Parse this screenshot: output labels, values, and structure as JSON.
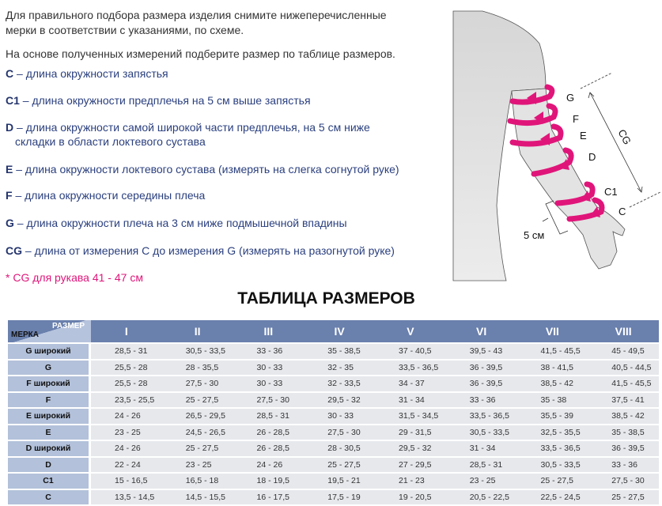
{
  "intro": [
    "Для правильного подбора размера изделия снимите нижеперечисленные",
    "мерки в соответствии с указаниями, по схеме.",
    "На основе полученных измерений подберите размер по таблице размеров."
  ],
  "measures": [
    {
      "code": "C",
      "text": "– длина окружности запястья"
    },
    {
      "code": "C1",
      "text": "– длина окружности предплечья на 5 см выше запястья"
    },
    {
      "code": "D",
      "text": "– длина окружности самой широкой части предплечья, на 5 см ниже",
      "text2": "складки в области локтевого сустава"
    },
    {
      "code": "E",
      "text": "– длина окружности локтевого сустава (измерять на слегка согнутой руке)"
    },
    {
      "code": "F",
      "text": "– длина окружности середины плеча"
    },
    {
      "code": "G",
      "text": "– длина окружности плеча на 3 см ниже подмышечной впадины"
    },
    {
      "code": "CG",
      "text": "– длина от измерения С до измерения G (измерять на разогнутой руке)"
    }
  ],
  "note": "* CG для рукава  41 - 47 см",
  "diagram": {
    "labels": [
      "G",
      "F",
      "E",
      "D",
      "C1",
      "C"
    ],
    "cg": "CG",
    "five": "5 см"
  },
  "table": {
    "title": "ТАБЛИЦА РАЗМЕРОВ",
    "corner_size": "РАЗМЕР",
    "corner_measure": "МЕРКА",
    "sizes": [
      "I",
      "II",
      "III",
      "IV",
      "V",
      "VI",
      "VII",
      "VIII"
    ],
    "rows": [
      {
        "name": "G широкий",
        "values": [
          "28,5 - 31",
          "30,5 - 33,5",
          "33 - 36",
          "35 - 38,5",
          "37 - 40,5",
          "39,5 - 43",
          "41,5 - 45,5",
          "45 - 49,5"
        ]
      },
      {
        "name": "G",
        "values": [
          "25,5 - 28",
          "28 - 35,5",
          "30 - 33",
          "32 - 35",
          "33,5 - 36,5",
          "36 - 39,5",
          "38 - 41,5",
          "40,5 - 44,5"
        ]
      },
      {
        "name": "F широкий",
        "values": [
          "25,5 - 28",
          "27,5 - 30",
          "30 - 33",
          "32 - 33,5",
          "34 - 37",
          "36 - 39,5",
          "38,5 - 42",
          "41,5 - 45,5"
        ]
      },
      {
        "name": "F",
        "values": [
          "23,5 - 25,5",
          "25 - 27,5",
          "27,5 - 30",
          "29,5 - 32",
          "31 - 34",
          "33 - 36",
          "35 - 38",
          "37,5 - 41"
        ]
      },
      {
        "name": "E широкий",
        "values": [
          "24 - 26",
          "26,5 - 29,5",
          "28,5 - 31",
          "30 - 33",
          "31,5 - 34,5",
          "33,5 - 36,5",
          "35,5 - 39",
          "38,5 - 42"
        ]
      },
      {
        "name": "E",
        "values": [
          "23 - 25",
          "24,5 - 26,5",
          "26 - 28,5",
          "27,5 - 30",
          "29 - 31,5",
          "30,5 - 33,5",
          "32,5 - 35,5",
          "35 - 38,5"
        ]
      },
      {
        "name": "D широкий",
        "values": [
          "24 - 26",
          "25 - 27,5",
          "26 - 28,5",
          "28 - 30,5",
          "29,5 - 32",
          "31 - 34",
          "33,5 - 36,5",
          "36 - 39,5"
        ]
      },
      {
        "name": "D",
        "values": [
          "22 - 24",
          "23 - 25",
          "24 - 26",
          "25 - 27,5",
          "27 - 29,5",
          "28,5 - 31",
          "30,5 - 33,5",
          "33 - 36"
        ]
      },
      {
        "name": "C1",
        "values": [
          "15 - 16,5",
          "16,5 - 18",
          "18 - 19,5",
          "19,5 - 21",
          "21 - 23",
          "23 - 25",
          "25 - 27,5",
          "27,5 - 30"
        ]
      },
      {
        "name": "C",
        "values": [
          "13,5 - 14,5",
          "14,5 - 15,5",
          "16 - 17,5",
          "17,5 - 19",
          "19 - 20,5",
          "20,5 - 22,5",
          "22,5 - 24,5",
          "25 - 27,5"
        ]
      }
    ]
  },
  "colors": {
    "accent": "#e0157a",
    "header": "#6a80ad",
    "rowhead": "#b3c1da",
    "text": "#2a3f7e"
  }
}
